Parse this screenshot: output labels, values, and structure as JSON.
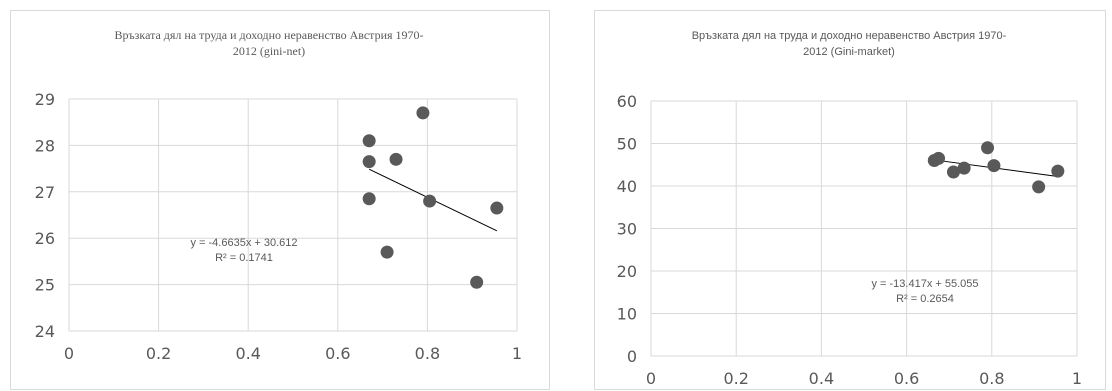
{
  "chart_data": [
    {
      "type": "scatter",
      "title_line1": "Връзката дял на труда и доходно неравенство Австрия 1970-",
      "title_line2": "2012 (gini-net)",
      "xlim": [
        0,
        1
      ],
      "ylim": [
        24,
        29
      ],
      "x_ticks": [
        "0",
        "0.2",
        "0.4",
        "0.6",
        "0.8",
        "1"
      ],
      "y_ticks": [
        "24",
        "25",
        "26",
        "27",
        "28",
        "29"
      ],
      "points": [
        {
          "x": 0.67,
          "y": 28.1
        },
        {
          "x": 0.67,
          "y": 27.65
        },
        {
          "x": 0.67,
          "y": 26.85
        },
        {
          "x": 0.71,
          "y": 25.7
        },
        {
          "x": 0.73,
          "y": 27.7
        },
        {
          "x": 0.79,
          "y": 28.7
        },
        {
          "x": 0.805,
          "y": 26.8
        },
        {
          "x": 0.91,
          "y": 25.05
        },
        {
          "x": 0.955,
          "y": 26.65
        }
      ],
      "trendline": {
        "slope": -4.6635,
        "intercept": 30.612,
        "x_range": [
          0.67,
          0.955
        ]
      },
      "equation": "y = -4.6635x + 30.612",
      "r_squared": "R² = 0.1741",
      "grid": true
    },
    {
      "type": "scatter",
      "title_line1": "Връзката дял на труда и доходно неравенство Австрия 1970-",
      "title_line2": "2012 (Gini-market)",
      "xlim": [
        0,
        1
      ],
      "ylim": [
        0,
        60
      ],
      "x_ticks": [
        "0",
        "0.2",
        "0.4",
        "0.6",
        "0.8",
        "1"
      ],
      "y_ticks": [
        "0",
        "10",
        "20",
        "30",
        "40",
        "50",
        "60"
      ],
      "points": [
        {
          "x": 0.665,
          "y": 46
        },
        {
          "x": 0.675,
          "y": 46.5
        },
        {
          "x": 0.71,
          "y": 43.3
        },
        {
          "x": 0.735,
          "y": 44.2
        },
        {
          "x": 0.79,
          "y": 49
        },
        {
          "x": 0.805,
          "y": 44.8
        },
        {
          "x": 0.91,
          "y": 39.8
        },
        {
          "x": 0.955,
          "y": 43.5
        }
      ],
      "trendline": {
        "slope": -13.417,
        "intercept": 55.055,
        "x_range": [
          0.665,
          0.955
        ]
      },
      "equation": "y = -13.417x + 55.055",
      "r_squared": "R² = 0.2654",
      "grid": true
    }
  ]
}
